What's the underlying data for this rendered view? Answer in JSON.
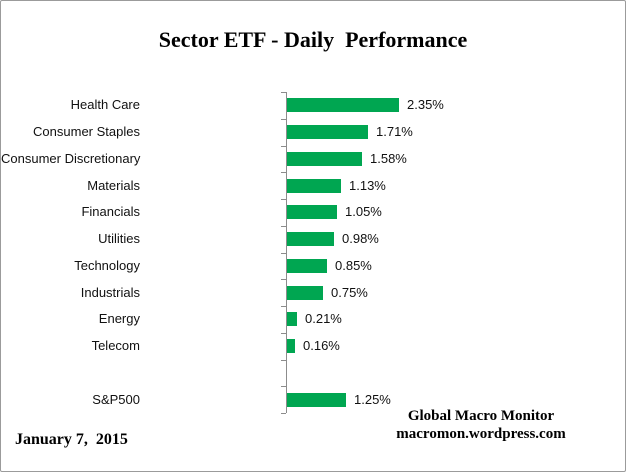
{
  "title": "Sector ETF - Daily  Performance",
  "footer_left": "January 7,  2015",
  "footer_right": {
    "line1": "Global Macro Monitor",
    "line2": "macromon.wordpress.com"
  },
  "colors": {
    "bar": "#00A651",
    "axis": "#8c8c8c",
    "text": "#000000"
  },
  "chart_data": {
    "type": "bar",
    "orientation": "horizontal",
    "title": "Sector ETF - Daily  Performance",
    "xlabel": "",
    "ylabel": "",
    "xlim": [
      0,
      2.5
    ],
    "grid": false,
    "legend": false,
    "categories": [
      "Health Care",
      "Consumer Staples",
      "Consumer Discretionary",
      "Materials",
      "Financials",
      "Utilities",
      "Technology",
      "Industrials",
      "Energy",
      "Telecom"
    ],
    "values": [
      2.35,
      1.71,
      1.58,
      1.13,
      1.05,
      0.98,
      0.85,
      0.75,
      0.21,
      0.16
    ],
    "value_labels": [
      "2.35%",
      "1.71%",
      "1.58%",
      "1.13%",
      "1.05%",
      "0.98%",
      "0.85%",
      "0.75%",
      "0.21%",
      "0.16%"
    ],
    "benchmark": {
      "category": "S&P500",
      "value": 1.25,
      "value_label": "1.25%"
    }
  }
}
